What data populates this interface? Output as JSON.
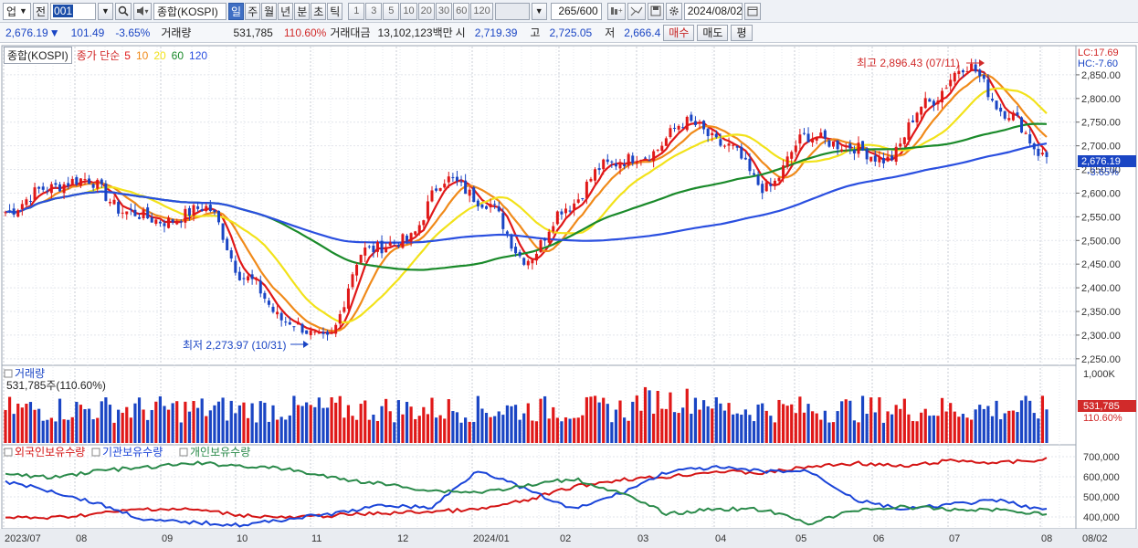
{
  "toolbar": {
    "market_select": "업",
    "prev_label": "전",
    "code": "001",
    "search_icon": "search-icon",
    "sound_icon": "speaker-icon",
    "name": "종합(KOSPI)",
    "periods": [
      "일",
      "주",
      "월",
      "년",
      "분",
      "초",
      "틱"
    ],
    "selected_period": "일",
    "intervals": [
      "1",
      "3",
      "5",
      "10",
      "20",
      "30",
      "60",
      "120"
    ],
    "count": "265/600",
    "date": "2024/08/02"
  },
  "quote": {
    "price": "2,676.19",
    "arrow": "▼",
    "change": "101.49",
    "change_pct": "-3.65%",
    "volume_label": "거래량",
    "volume": "531,785",
    "volume_ratio": "110.60%",
    "amount_label": "거래대금",
    "amount": "13,102,123백만",
    "open_label": "시",
    "open": "2,719.39",
    "high_label": "고",
    "high": "2,725.05",
    "low_label": "저",
    "low": "2,666.4",
    "buy_label": "매수",
    "sell_label": "매도",
    "eval_label": "평"
  },
  "price_panel": {
    "legend_name": "종합(KOSPI)",
    "legend_ma_label": "종가 단순",
    "ma_periods": [
      "5",
      "10",
      "20",
      "60",
      "120"
    ],
    "ma_colors": [
      "#e01818",
      "#f08a1a",
      "#f2e21a",
      "#1a8a2a",
      "#2a4fe0"
    ],
    "lc_label": "LC:17.69",
    "hc_label": "HC:-7.60",
    "high_annotation": "최고 2,896.43 (07/11)",
    "low_annotation": "최저 2,273.97 (10/31)",
    "last_price_tag": "2,676.19",
    "last_change_tag": "-3.65%",
    "y_ticks": [
      "2,850.00",
      "2,800.00",
      "2,750.00",
      "2,700.00",
      "2,650.00",
      "2,600.00",
      "2,550.00",
      "2,500.00",
      "2,450.00",
      "2,400.00",
      "2,350.00",
      "2,300.00",
      "2,250.00"
    ]
  },
  "volume_panel": {
    "title": "거래량",
    "subtitle": "531,785주(110.60%)",
    "y_tick": "1,000K",
    "last_tag": "531,785",
    "last_ratio": "110.60%"
  },
  "holdings_panel": {
    "legend": [
      {
        "label": "외국인보유수량",
        "color": "#d41414"
      },
      {
        "label": "기관보유수량",
        "color": "#1a44d8"
      },
      {
        "label": "개인보유수량",
        "color": "#2a8a4a"
      }
    ],
    "y_ticks": [
      "700,000",
      "600,000",
      "500,000",
      "400,000"
    ]
  },
  "x_axis": {
    "labels": [
      "2023/07",
      "08",
      "09",
      "10",
      "11",
      "12",
      "2024/01",
      "02",
      "03",
      "04",
      "05",
      "06",
      "07",
      "08"
    ],
    "end_label": "08/02"
  },
  "chart_data": {
    "type": "candlestick",
    "period": "daily",
    "x_range": [
      "2023/07",
      "2024/08/02"
    ],
    "y_range": [
      2250,
      2900
    ],
    "grid": true,
    "high_point": {
      "date": "07/11",
      "value": 2896.43
    },
    "low_point": {
      "date": "10/31",
      "value": 2273.97
    },
    "last_close": 2676.19,
    "close_path": [
      {
        "month": "2023/07",
        "value": 2560
      },
      {
        "month": "2023/07",
        "value": 2610
      },
      {
        "month": "08",
        "value": 2630
      },
      {
        "month": "08",
        "value": 2560
      },
      {
        "month": "09",
        "value": 2540
      },
      {
        "month": "09",
        "value": 2570
      },
      {
        "month": "10",
        "value": 2420
      },
      {
        "month": "10",
        "value": 2330
      },
      {
        "month": "11",
        "value": 2290
      },
      {
        "month": "11",
        "value": 2480
      },
      {
        "month": "12",
        "value": 2500
      },
      {
        "month": "12",
        "value": 2630
      },
      {
        "month": "2024/01",
        "value": 2580
      },
      {
        "month": "2024/01",
        "value": 2460
      },
      {
        "month": "02",
        "value": 2570
      },
      {
        "month": "02",
        "value": 2660
      },
      {
        "month": "03",
        "value": 2680
      },
      {
        "month": "03",
        "value": 2750
      },
      {
        "month": "04",
        "value": 2700
      },
      {
        "month": "04",
        "value": 2610
      },
      {
        "month": "05",
        "value": 2720
      },
      {
        "month": "05",
        "value": 2700
      },
      {
        "month": "06",
        "value": 2670
      },
      {
        "month": "06",
        "value": 2790
      },
      {
        "month": "07",
        "value": 2870
      },
      {
        "month": "07",
        "value": 2770
      },
      {
        "month": "08",
        "value": 2676.19
      }
    ],
    "moving_averages": [
      "5",
      "10",
      "20",
      "60",
      "120"
    ]
  }
}
